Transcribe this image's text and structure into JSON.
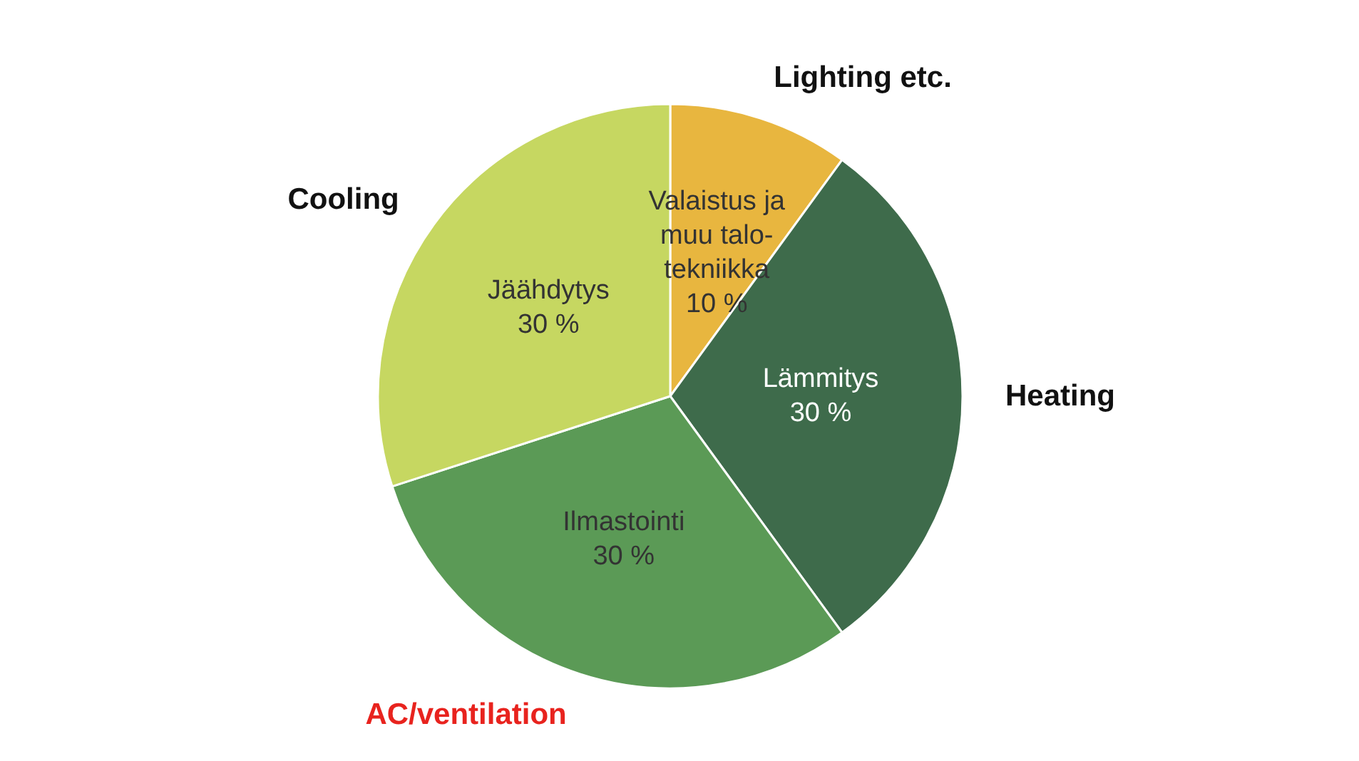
{
  "chart_data": {
    "type": "pie",
    "categories": [
      "Valaistus ja\nmuu talo-\ntekniikka",
      "Lämmitys",
      "Ilmastointi",
      "Jäähdytys"
    ],
    "values": [
      10,
      30,
      30,
      30
    ],
    "colors": [
      "#e8b63f",
      "#3e6b4b",
      "#5b9a56",
      "#c6d761"
    ],
    "value_labels": [
      "10 %",
      "30 %",
      "30 %",
      "30 %"
    ],
    "annotations": [
      "Lighting etc.",
      "Heating",
      "AC/ventilation",
      "Cooling"
    ]
  }
}
